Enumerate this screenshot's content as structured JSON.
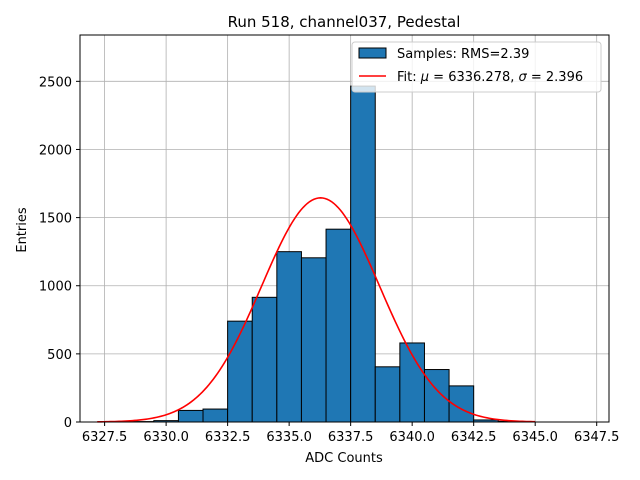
{
  "chart_data": {
    "type": "bar",
    "title": "Run 518, channel037, Pedestal",
    "xlabel": "ADC Counts",
    "ylabel": "Entries",
    "xlim": [
      6326.5,
      6348.0
    ],
    "ylim": [
      0,
      2840
    ],
    "x_ticks": [
      6327.5,
      6330.0,
      6332.5,
      6335.0,
      6337.5,
      6340.0,
      6342.5,
      6345.0,
      6347.5
    ],
    "x_tick_labels": [
      "6327.5",
      "6330.0",
      "6332.5",
      "6335.0",
      "6337.5",
      "6340.0",
      "6342.5",
      "6345.0",
      "6347.5"
    ],
    "y_ticks": [
      0,
      500,
      1000,
      1500,
      2000,
      2500
    ],
    "y_tick_labels": [
      "0",
      "500",
      "1000",
      "1500",
      "2000",
      "2500"
    ],
    "grid": true,
    "legend_position": "top-right",
    "histogram": {
      "name": "Samples: RMS=2.39",
      "color": "#1f77b4",
      "edge_color": "#000000",
      "bins": [
        {
          "x0": 6328.5,
          "x1": 6329.5,
          "count": 3
        },
        {
          "x0": 6329.5,
          "x1": 6330.5,
          "count": 10
        },
        {
          "x0": 6330.5,
          "x1": 6331.5,
          "count": 85
        },
        {
          "x0": 6331.5,
          "x1": 6332.5,
          "count": 95
        },
        {
          "x0": 6332.5,
          "x1": 6333.5,
          "count": 740
        },
        {
          "x0": 6333.5,
          "x1": 6334.5,
          "count": 915
        },
        {
          "x0": 6334.5,
          "x1": 6335.5,
          "count": 1250
        },
        {
          "x0": 6335.5,
          "x1": 6336.5,
          "count": 1205
        },
        {
          "x0": 6336.5,
          "x1": 6337.5,
          "count": 1415
        },
        {
          "x0": 6337.5,
          "x1": 6338.5,
          "count": 2465
        },
        {
          "x0": 6338.5,
          "x1": 6339.5,
          "count": 405
        },
        {
          "x0": 6339.5,
          "x1": 6340.5,
          "count": 580
        },
        {
          "x0": 6340.5,
          "x1": 6341.5,
          "count": 385
        },
        {
          "x0": 6341.5,
          "x1": 6342.5,
          "count": 265
        },
        {
          "x0": 6342.5,
          "x1": 6343.5,
          "count": 15
        },
        {
          "x0": 6343.5,
          "x1": 6344.5,
          "count": 5
        }
      ]
    },
    "fit": {
      "name_prefix": "Fit: ",
      "mu_label": "μ",
      "mu_text": " = 6336.278, ",
      "sigma_label": "σ",
      "sigma_text": " = 2.396",
      "color": "#ff0000",
      "mu": 6336.278,
      "sigma": 2.396,
      "amplitude": 1645,
      "x_range": [
        6327.2,
        6345.0
      ]
    }
  }
}
